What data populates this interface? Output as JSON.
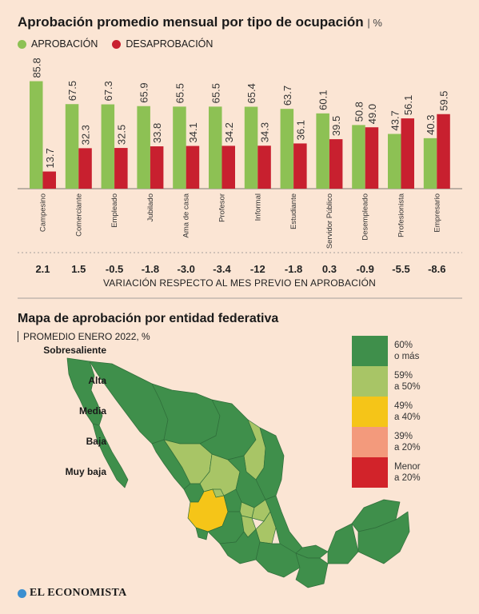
{
  "header": {
    "title": "Aprobación promedio mensual por tipo de ocupación",
    "unit": "| %"
  },
  "legend": {
    "approval": "APROBACIÓN",
    "disapproval": "DESAPROBACIÓN"
  },
  "colors": {
    "approval": "#8dc154",
    "disapproval": "#c8202f",
    "background": "#fbe5d4",
    "sobresaliente": "#3f8f4b",
    "alta": "#a8c566",
    "media": "#f5c518",
    "baja": "#f39a7c",
    "muy_baja": "#d2232a"
  },
  "chart_data": {
    "type": "bar",
    "categories": [
      "Campesino",
      "Comerciante",
      "Empleado",
      "Jubilado",
      "Ama de casa",
      "Profesor",
      "Informal",
      "Estudiante",
      "Servidor Público",
      "Desempleado",
      "Profesionista",
      "Empresario"
    ],
    "series": [
      {
        "name": "APROBACIÓN",
        "values": [
          85.8,
          67.5,
          67.3,
          65.9,
          65.5,
          65.5,
          65.4,
          63.7,
          60.1,
          50.8,
          43.7,
          40.3
        ]
      },
      {
        "name": "DESAPROBACIÓN",
        "values": [
          13.7,
          32.3,
          32.5,
          33.8,
          34.1,
          34.2,
          34.3,
          36.1,
          39.5,
          49.0,
          56.1,
          59.5
        ]
      }
    ],
    "value_labels": {
      "approval": [
        "85.8",
        "67.5",
        "67.3",
        "65.9",
        "65.5",
        "65.5",
        "65.4",
        "63.7",
        "60.1",
        "50.8",
        "43.7",
        "40.3"
      ],
      "disapproval": [
        "13.7",
        "32.3",
        "32.5",
        "33.8",
        "34.1",
        "34.2",
        "34.3",
        "36.1",
        "39.5",
        "49.0",
        "56.1",
        "59.5"
      ]
    },
    "variation": [
      "2.1",
      "1.5",
      "-0.5",
      "-1.8",
      "-3.0",
      "-3.4",
      "-12",
      "-1.8",
      "0.3",
      "-0.9",
      "-5.5",
      "-8.6"
    ],
    "variation_label": "VARIACIÓN RESPECTO AL MES PREVIO EN APROBACIÓN",
    "ylim": [
      0,
      100
    ],
    "grid": false
  },
  "map": {
    "title": "Mapa de aprobación por entidad federativa",
    "subtitle": "PROMEDIO ENERO 2022, %",
    "scale": [
      {
        "label": "Sobresaliente",
        "range_1": "60%",
        "range_2": "o más",
        "color": "#3f8f4b"
      },
      {
        "label": "Alta",
        "range_1": "59%",
        "range_2": "a 50%",
        "color": "#a8c566"
      },
      {
        "label": "Media",
        "range_1": "49%",
        "range_2": "a 40%",
        "color": "#f5c518"
      },
      {
        "label": "Baja",
        "range_1": "39%",
        "range_2": "a 20%",
        "color": "#f39a7c"
      },
      {
        "label": "Muy baja",
        "range_1": "Menor",
        "range_2": "a 20%",
        "color": "#d2232a"
      }
    ]
  },
  "footer": {
    "brand": "EL ECONOMISTA"
  }
}
